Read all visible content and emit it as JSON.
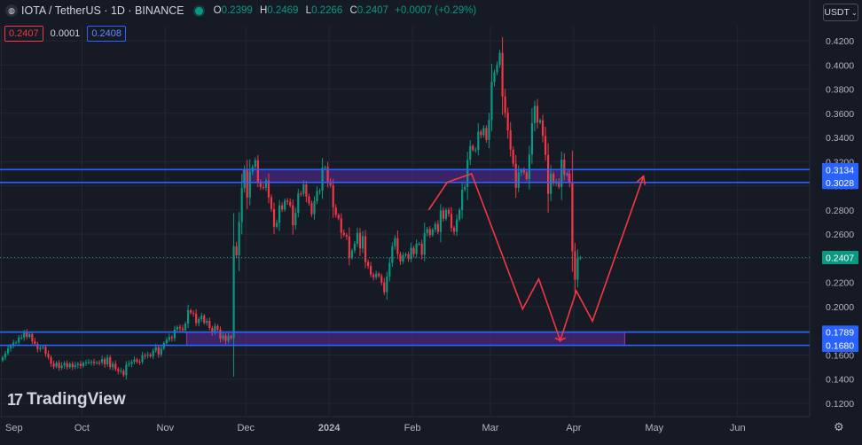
{
  "header": {
    "symbol": "IOTA / TetherUS · 1D · BINANCE",
    "o_label": "O",
    "o_value": "0.2399",
    "h_label": "H",
    "h_value": "0.2469",
    "l_label": "L",
    "l_value": "0.2266",
    "c_label": "C",
    "c_value": "0.2407",
    "change": "+0.0007 (+0.29%)"
  },
  "trade": {
    "sell": "0.2407",
    "spread": "0.0001",
    "buy": "0.2408"
  },
  "currency_button": "USDT",
  "watermark": "TradingView",
  "colors": {
    "up": "#089981",
    "down": "#f23645",
    "zone": "#5b2ca0",
    "line": "#2962ff",
    "path": "#f23645",
    "bg": "#161a25"
  },
  "chart_data": {
    "type": "candlestick",
    "ylim": [
      0.11,
      0.43
    ],
    "y_ticks": [
      "0.4200",
      "0.4000",
      "0.3800",
      "0.3600",
      "0.3400",
      "0.3200",
      "0.3000",
      "0.2800",
      "0.2600",
      "0.2400",
      "0.2200",
      "0.2000",
      "0.1800",
      "0.1600",
      "0.1400",
      "0.1200"
    ],
    "x_ticks": [
      "Sep",
      "Oct",
      "Nov",
      "Dec",
      "2024",
      "Feb",
      "Mar",
      "Apr",
      "May",
      "Jun"
    ],
    "last_price": "0.2407",
    "levels": [
      {
        "label": "0.3134",
        "value": 0.3134
      },
      {
        "label": "0.3028",
        "value": 0.3028
      },
      {
        "label": "0.1789",
        "value": 0.1789
      },
      {
        "label": "0.1680",
        "value": 0.168
      }
    ],
    "zones": [
      {
        "from_day": 90,
        "to_day": 211,
        "low": 0.3028,
        "high": 0.3134
      },
      {
        "from_day": 69,
        "to_day": 232,
        "low": 0.168,
        "high": 0.1789
      }
    ],
    "projection": [
      [
        166,
        0.303
      ],
      [
        175,
        0.31
      ],
      [
        194,
        0.198
      ],
      [
        200,
        0.223
      ],
      [
        208,
        0.172
      ],
      [
        214,
        0.213
      ],
      [
        220,
        0.188
      ],
      [
        239,
        0.308
      ]
    ],
    "trend_line": [
      [
        159,
        0.28
      ],
      [
        166,
        0.303
      ]
    ],
    "closes": [
      0.158,
      0.1613,
      0.1655,
      0.1675,
      0.1702,
      0.1705,
      0.1743,
      0.1744,
      0.1791,
      0.175,
      0.1773,
      0.1714,
      0.1691,
      0.1649,
      0.166,
      0.1666,
      0.1609,
      0.158,
      0.1529,
      0.1503,
      0.1536,
      0.1493,
      0.1514,
      0.1532,
      0.1499,
      0.1528,
      0.15,
      0.1516,
      0.1527,
      0.1508,
      0.1534,
      0.1539,
      0.154,
      0.1544,
      0.1533,
      0.1538,
      0.1537,
      0.1566,
      0.1523,
      0.158,
      0.1499,
      0.1527,
      0.1483,
      0.1466,
      0.147,
      0.1433,
      0.1519,
      0.1527,
      0.1544,
      0.1563,
      0.1544,
      0.1542,
      0.1598,
      0.1594,
      0.1604,
      0.159,
      0.1635,
      0.1665,
      0.1605,
      0.1654,
      0.1699,
      0.1725,
      0.1748,
      0.1739,
      0.1811,
      0.1832,
      0.182,
      0.1806,
      0.186,
      0.197,
      0.1949,
      0.1942,
      0.1864,
      0.1897,
      0.1925,
      0.1866,
      0.1882,
      0.1823,
      0.1788,
      0.184,
      0.181,
      0.1735,
      0.1762,
      0.1717,
      0.1756,
      0.174,
      0.25,
      0.2425,
      0.27,
      0.2981,
      0.3132,
      0.2903,
      0.3117,
      0.3157,
      0.3212,
      0.3032,
      0.299,
      0.2984,
      0.3044,
      0.2905,
      0.2808,
      0.2661,
      0.2694,
      0.2838,
      0.2804,
      0.2878,
      0.2867,
      0.2838,
      0.2674,
      0.2776,
      0.2936,
      0.2935,
      0.3011,
      0.2911,
      0.2856,
      0.2765,
      0.2873,
      0.2956,
      0.296,
      0.315,
      0.3155,
      0.3036,
      0.3003,
      0.2822,
      0.276,
      0.273,
      0.2611,
      0.2593,
      0.2581,
      0.2405,
      0.2465,
      0.2522,
      0.2611,
      0.2481,
      0.2583,
      0.2369,
      0.2337,
      0.2265,
      0.2244,
      0.2273,
      0.2253,
      0.22,
      0.212,
      0.225,
      0.2362,
      0.25,
      0.2567,
      0.2436,
      0.2374,
      0.2425,
      0.2434,
      0.2395,
      0.2486,
      0.2435,
      0.252,
      0.2521,
      0.243,
      0.2609,
      0.2642,
      0.2592,
      0.2638,
      0.2684,
      0.2618,
      0.2796,
      0.2728,
      0.28,
      0.2768,
      0.2652,
      0.262,
      0.2722,
      0.28,
      0.2968,
      0.299,
      0.3214,
      0.333,
      0.3297,
      0.3297,
      0.3447,
      0.342,
      0.3478,
      0.338,
      0.3545,
      0.3859,
      0.3938,
      0.4001,
      0.41,
      0.3738,
      0.3604,
      0.3459,
      0.3299,
      0.3183,
      0.2984,
      0.3109,
      0.3129,
      0.3111,
      0.3055,
      0.3258,
      0.3518,
      0.3661,
      0.3523,
      0.3542,
      0.3413,
      0.3256,
      0.2933,
      0.31,
      0.3019,
      0.3035,
      0.2991,
      0.3216,
      0.309,
      0.31,
      0.3021,
      0.2458,
      0.2223,
      0.24,
      0.2407
    ]
  }
}
